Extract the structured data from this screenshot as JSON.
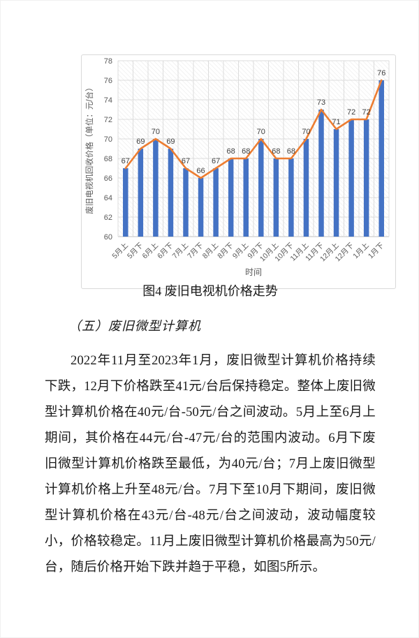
{
  "figure": {
    "caption": "图4 废旧电视机价格走势"
  },
  "section": {
    "heading": "（五）废旧微型计算机",
    "paragraph": "2022年11月至2023年1月，废旧微型计算机价格持续下跌，12月下价格跌至41元/台后保持稳定。整体上废旧微型计算机价格在40元/台-50元/台之间波动。5月上至6月上期间，其价格在44元/台-47元/台的范围内波动。6月下废旧微型计算机价格跌至最低，为40元/台；7月上废旧微型计算机价格上升至48元/台。7月下至10月下期间，废旧微型计算机价格在43元/台-48元/台之间波动，波动幅度较小，价格较稳定。11月上废旧微型计算机价格最高为50元/台，随后价格开始下跌并趋于平稳，如图5所示。"
  },
  "chart_data": {
    "type": "bar",
    "overlay_line": true,
    "categories": [
      "5月上",
      "5月下",
      "6月上",
      "6月下",
      "7月上",
      "7月下",
      "8月上",
      "8月下",
      "9月上",
      "9月下",
      "10月上",
      "10月下",
      "11月上",
      "11月下",
      "12月上",
      "12月下",
      "1月上",
      "1月下"
    ],
    "values": [
      67,
      69,
      70,
      69,
      67,
      66,
      67,
      68,
      68,
      70,
      68,
      68,
      70,
      73,
      71,
      72,
      72,
      76
    ],
    "xlabel": "时间",
    "ylabel": "废旧电视机回收价格（单位：元/台）",
    "ylim": [
      60,
      78
    ],
    "ytick_step": 2,
    "grid": true,
    "data_labels": true,
    "legend": "none",
    "colors": {
      "bar": "#4472C4",
      "line": "#ED7D31",
      "grid": "#dcdcdc",
      "axis_line": "#c0c0c0",
      "axis_text": "#595959",
      "label_text": "#3f3f3f",
      "hatch": "#ebebeb",
      "chart_border": "#d9d9d9"
    }
  }
}
